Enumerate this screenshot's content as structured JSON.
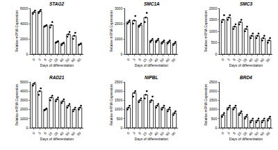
{
  "chart_data": [
    {
      "type": "bar",
      "title": "STAG2",
      "x_label": "Days of differentiation",
      "y_label": "Relative mRNA Expression",
      "categories": [
        "0",
        "3",
        "8",
        "15",
        "28",
        "40",
        "50",
        "60",
        "90"
      ],
      "values": [
        5500,
        5600,
        3700,
        3800,
        1600,
        1400,
        2600,
        2400,
        1300
      ],
      "points": [
        [
          5300,
          5500,
          5700
        ],
        [
          5400,
          5600,
          5800
        ],
        [
          3600,
          3700,
          3800
        ],
        [
          3500,
          3800,
          4200
        ],
        [
          1500,
          1600,
          1700
        ],
        [
          1200,
          1400,
          1500
        ],
        [
          2300,
          2600,
          2900
        ],
        [
          2000,
          2400,
          2800
        ],
        [
          1200,
          1300,
          1400
        ]
      ],
      "ylim": [
        0,
        6000
      ],
      "yticks": [
        0,
        2000,
        4000,
        6000
      ],
      "color": "#ffffff",
      "marker": "circle",
      "grid": false
    },
    {
      "type": "bar",
      "title": "SMC1A",
      "x_label": "Days of differentiation",
      "y_label": "Relative mRNA Expression",
      "categories": [
        "0",
        "3",
        "8",
        "15",
        "28",
        "40",
        "50",
        "60",
        "90"
      ],
      "values": [
        2100,
        2200,
        1900,
        2400,
        900,
        900,
        800,
        800,
        700
      ],
      "points": [
        [
          2000,
          2100,
          2200
        ],
        [
          2000,
          2200,
          2500
        ],
        [
          1800,
          1900,
          2000
        ],
        [
          2100,
          2400,
          2700
        ],
        [
          800,
          900,
          1000
        ],
        [
          800,
          900,
          1000
        ],
        [
          700,
          800,
          900
        ],
        [
          700,
          800,
          900
        ],
        [
          600,
          700,
          800
        ]
      ],
      "ylim": [
        0,
        3000
      ],
      "yticks": [
        0,
        1000,
        2000,
        3000
      ],
      "color": "#ffffff",
      "marker": "circle",
      "grid": false
    },
    {
      "type": "bar",
      "title": "SMC3",
      "x_label": "Days of differentiation",
      "y_label": "Relative mRNA Expression",
      "categories": [
        "0",
        "3",
        "8",
        "15",
        "28",
        "40",
        "50",
        "60",
        "90"
      ],
      "values": [
        1500,
        1600,
        1200,
        1400,
        1100,
        800,
        800,
        700,
        600
      ],
      "points": [
        [
          1400,
          1500,
          1700
        ],
        [
          1500,
          1600,
          1700
        ],
        [
          1100,
          1200,
          1300
        ],
        [
          1300,
          1400,
          1500
        ],
        [
          1000,
          1100,
          1200
        ],
        [
          700,
          800,
          900
        ],
        [
          700,
          800,
          900
        ],
        [
          600,
          700,
          800
        ],
        [
          500,
          600,
          700
        ]
      ],
      "ylim": [
        0,
        2000
      ],
      "yticks": [
        0,
        500,
        1000,
        1500,
        2000
      ],
      "color": "#ffffff",
      "marker": "circle",
      "grid": false
    },
    {
      "type": "bar",
      "title": "RAD21",
      "x_label": "Days of differentiation",
      "y_label": "Relative mRNA Expression",
      "categories": [
        "0",
        "3",
        "8",
        "15",
        "28",
        "40",
        "50",
        "60",
        "90"
      ],
      "values": [
        4800,
        4000,
        2000,
        3300,
        3100,
        2900,
        2400,
        2000,
        2200
      ],
      "points": [
        [
          4600,
          4800,
          5000
        ],
        [
          3600,
          4000,
          4300
        ],
        [
          1900,
          2000,
          2100
        ],
        [
          3000,
          3300,
          3500
        ],
        [
          2900,
          3100,
          3300
        ],
        [
          2700,
          2900,
          3100
        ],
        [
          2200,
          2400,
          2600
        ],
        [
          1800,
          2000,
          2200
        ],
        [
          2000,
          2200,
          2400
        ]
      ],
      "ylim": [
        0,
        5000
      ],
      "yticks": [
        0,
        1000,
        2000,
        3000,
        4000,
        5000
      ],
      "color": "#ffffff",
      "marker": "circle",
      "grid": false
    },
    {
      "type": "bar",
      "title": "NIPBL",
      "x_label": "Days of differentiation",
      "y_label": "Relative mRNA Expression",
      "categories": [
        "0",
        "3",
        "8",
        "15",
        "28",
        "40",
        "50",
        "60",
        "90"
      ],
      "values": [
        1100,
        1900,
        1500,
        1800,
        1500,
        1200,
        1100,
        1000,
        800
      ],
      "points": [
        [
          1000,
          1100,
          1200
        ],
        [
          1700,
          1900,
          2000
        ],
        [
          1400,
          1500,
          1600
        ],
        [
          1600,
          1800,
          2000
        ],
        [
          1400,
          1500,
          1700
        ],
        [
          1100,
          1200,
          1300
        ],
        [
          1000,
          1100,
          1200
        ],
        [
          900,
          1000,
          1100
        ],
        [
          700,
          800,
          900
        ]
      ],
      "ylim": [
        0,
        2500
      ],
      "yticks": [
        0,
        500,
        1000,
        1500,
        2000,
        2500
      ],
      "color": "#ffffff",
      "marker": "circle",
      "grid": false
    },
    {
      "type": "bar",
      "title": "BRD4",
      "x_label": "Days of differentiation",
      "y_label": "Relative mRNA Expression",
      "categories": [
        "0",
        "3",
        "8",
        "15",
        "28",
        "40",
        "50",
        "60",
        "90"
      ],
      "values": [
        700,
        1100,
        1100,
        800,
        600,
        400,
        400,
        400,
        500
      ],
      "points": [
        [
          600,
          700,
          800
        ],
        [
          1000,
          1100,
          1200
        ],
        [
          1000,
          1100,
          1200
        ],
        [
          700,
          800,
          900
        ],
        [
          500,
          600,
          700
        ],
        [
          300,
          400,
          500
        ],
        [
          300,
          400,
          500
        ],
        [
          300,
          400,
          500
        ],
        [
          400,
          500,
          600
        ]
      ],
      "ylim": [
        0,
        2500
      ],
      "yticks": [
        0,
        500,
        1000,
        1500,
        2000,
        2500
      ],
      "color": "#ffffff",
      "marker": "circle",
      "grid": false
    }
  ]
}
